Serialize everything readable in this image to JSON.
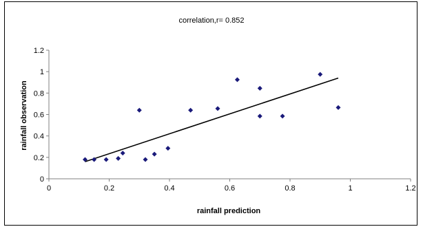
{
  "chart_data": {
    "type": "scatter",
    "title": "correlation,r= 0.852",
    "xlabel": "rainfall prediction",
    "ylabel": "rainfall observation",
    "xlim": [
      0,
      1.2
    ],
    "ylim": [
      0,
      1.2
    ],
    "x_ticks": [
      "0",
      "0.2",
      "0.4",
      "0.6",
      "0.8",
      "1",
      "1.2"
    ],
    "y_ticks": [
      "0",
      "0.2",
      "0.4",
      "0.6",
      "0.8",
      "1",
      "1.2"
    ],
    "grid": false,
    "legend": "none",
    "marker": "diamond",
    "marker_color": "#1a1a7a",
    "trendline": {
      "type": "linear",
      "x_range": [
        0.12,
        0.96
      ],
      "y_range": [
        0.16,
        0.94
      ],
      "color": "#000000"
    },
    "points": [
      {
        "x": 0.12,
        "y": 0.18
      },
      {
        "x": 0.15,
        "y": 0.18
      },
      {
        "x": 0.19,
        "y": 0.18
      },
      {
        "x": 0.23,
        "y": 0.19
      },
      {
        "x": 0.245,
        "y": 0.24
      },
      {
        "x": 0.3,
        "y": 0.64
      },
      {
        "x": 0.32,
        "y": 0.18
      },
      {
        "x": 0.35,
        "y": 0.23
      },
      {
        "x": 0.395,
        "y": 0.285
      },
      {
        "x": 0.47,
        "y": 0.64
      },
      {
        "x": 0.56,
        "y": 0.655
      },
      {
        "x": 0.625,
        "y": 0.925
      },
      {
        "x": 0.7,
        "y": 0.845
      },
      {
        "x": 0.7,
        "y": 0.585
      },
      {
        "x": 0.775,
        "y": 0.585
      },
      {
        "x": 0.9,
        "y": 0.975
      },
      {
        "x": 0.96,
        "y": 0.665
      }
    ]
  }
}
